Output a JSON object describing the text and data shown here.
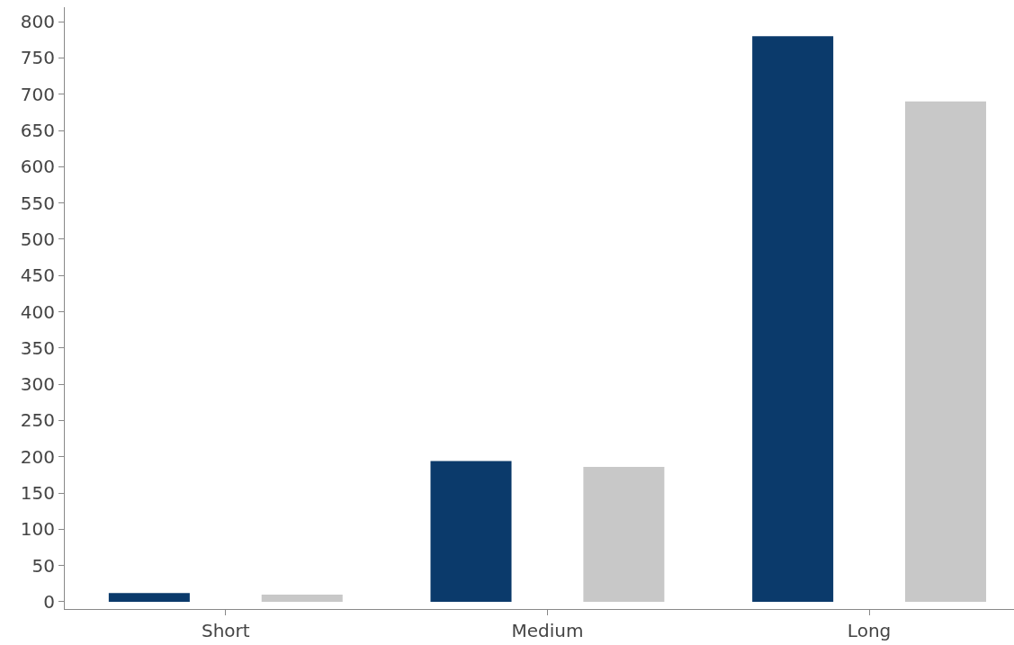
{
  "chart_data": {
    "type": "bar",
    "categories": [
      "Short",
      "Medium",
      "Long"
    ],
    "series": [
      {
        "color": "#0b3a6b",
        "values": [
          12,
          194,
          780
        ]
      },
      {
        "color": "#c8c8c8",
        "values": [
          10,
          186,
          690
        ]
      }
    ],
    "ylim": [
      -10,
      820
    ],
    "yticks": [
      0,
      50,
      100,
      150,
      200,
      250,
      300,
      350,
      400,
      450,
      500,
      550,
      600,
      650,
      700,
      750,
      800
    ]
  }
}
